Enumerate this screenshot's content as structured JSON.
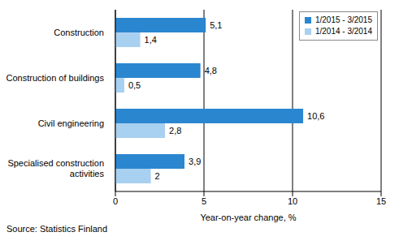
{
  "chart_data": {
    "type": "bar",
    "orientation": "horizontal",
    "categories": [
      "Construction",
      "Construction of buildings",
      "Civil engineering",
      "Specialised construction activities"
    ],
    "series": [
      {
        "name": "1/2015 - 3/2015",
        "color": "#2b86d0",
        "values": [
          5.1,
          4.8,
          10.6,
          3.9
        ],
        "value_labels": [
          "5,1",
          "4,8",
          "10,6",
          "3,9"
        ]
      },
      {
        "name": "1/2014 - 3/2014",
        "color": "#a8d0f0",
        "values": [
          1.4,
          0.5,
          2.8,
          2
        ],
        "value_labels": [
          "1,4",
          "0,5",
          "2,8",
          "2"
        ]
      }
    ],
    "xlim": [
      0,
      15
    ],
    "xticks": [
      0,
      5,
      10,
      15
    ],
    "xlabel": "Year-on-year change, %",
    "grid": true,
    "legend": "top right",
    "data_labels": true,
    "annotations": [
      "Source: Statistics Finland"
    ]
  }
}
